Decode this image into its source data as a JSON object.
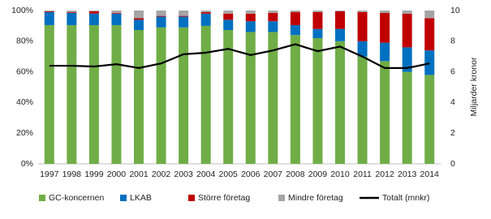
{
  "chart_data": {
    "type": "bar",
    "stacked": true,
    "y2label": "Miljarder kronor",
    "categories": [
      "1997",
      "1998",
      "1999",
      "2000",
      "2001",
      "2002",
      "2003",
      "2004",
      "2005",
      "2006",
      "2007",
      "2008",
      "2009",
      "2010",
      "2011",
      "2012",
      "2013",
      "2014"
    ],
    "series": [
      {
        "name": "GC-koncernen",
        "type": "bar",
        "color": "#70ad47",
        "values": [
          90.5,
          90.5,
          90.5,
          90.5,
          87.3,
          89,
          89,
          90,
          87.3,
          86,
          86,
          84,
          82,
          80,
          70,
          67,
          60,
          58
        ]
      },
      {
        "name": "LKAB",
        "type": "bar",
        "color": "#0070c0",
        "values": [
          8.5,
          8,
          7.5,
          7.5,
          6.7,
          7,
          7,
          8,
          6.7,
          7,
          7,
          6.5,
          6,
          8,
          10,
          12,
          16,
          16
        ]
      },
      {
        "name": "Större företag",
        "type": "bar",
        "color": "#c00000",
        "values": [
          0.5,
          0.5,
          1.5,
          0.5,
          1,
          0.5,
          0.5,
          1,
          4,
          5,
          5.5,
          8.5,
          11,
          11.5,
          19,
          19.5,
          22,
          21
        ]
      },
      {
        "name": "Mindre företag",
        "type": "bar",
        "color": "#a5a5a5",
        "values": [
          0.5,
          1,
          0.5,
          1.5,
          5,
          3.5,
          3.5,
          1,
          2,
          2,
          1.5,
          1,
          1,
          0.5,
          1,
          1.5,
          2,
          5
        ]
      },
      {
        "name": "Totalt (mnkr)",
        "type": "line",
        "axis": "y2",
        "color": "#000000",
        "values": [
          6.4,
          6.4,
          6.35,
          6.5,
          6.25,
          6.55,
          7.15,
          7.25,
          7.5,
          7.1,
          7.4,
          7.8,
          7.35,
          7.65,
          7.0,
          6.25,
          6.25,
          6.55
        ]
      }
    ],
    "ylim": [
      0,
      100
    ],
    "yticks": [
      {
        "value": 0,
        "label": "0%"
      },
      {
        "value": 20,
        "label": "20%"
      },
      {
        "value": 40,
        "label": "40%"
      },
      {
        "value": 60,
        "label": "60%"
      },
      {
        "value": 80,
        "label": "80%"
      },
      {
        "value": 100,
        "label": "100%"
      }
    ],
    "y2lim": [
      0,
      10
    ],
    "y2ticks": [
      0,
      2,
      4,
      6,
      8,
      10
    ],
    "grid": false
  }
}
